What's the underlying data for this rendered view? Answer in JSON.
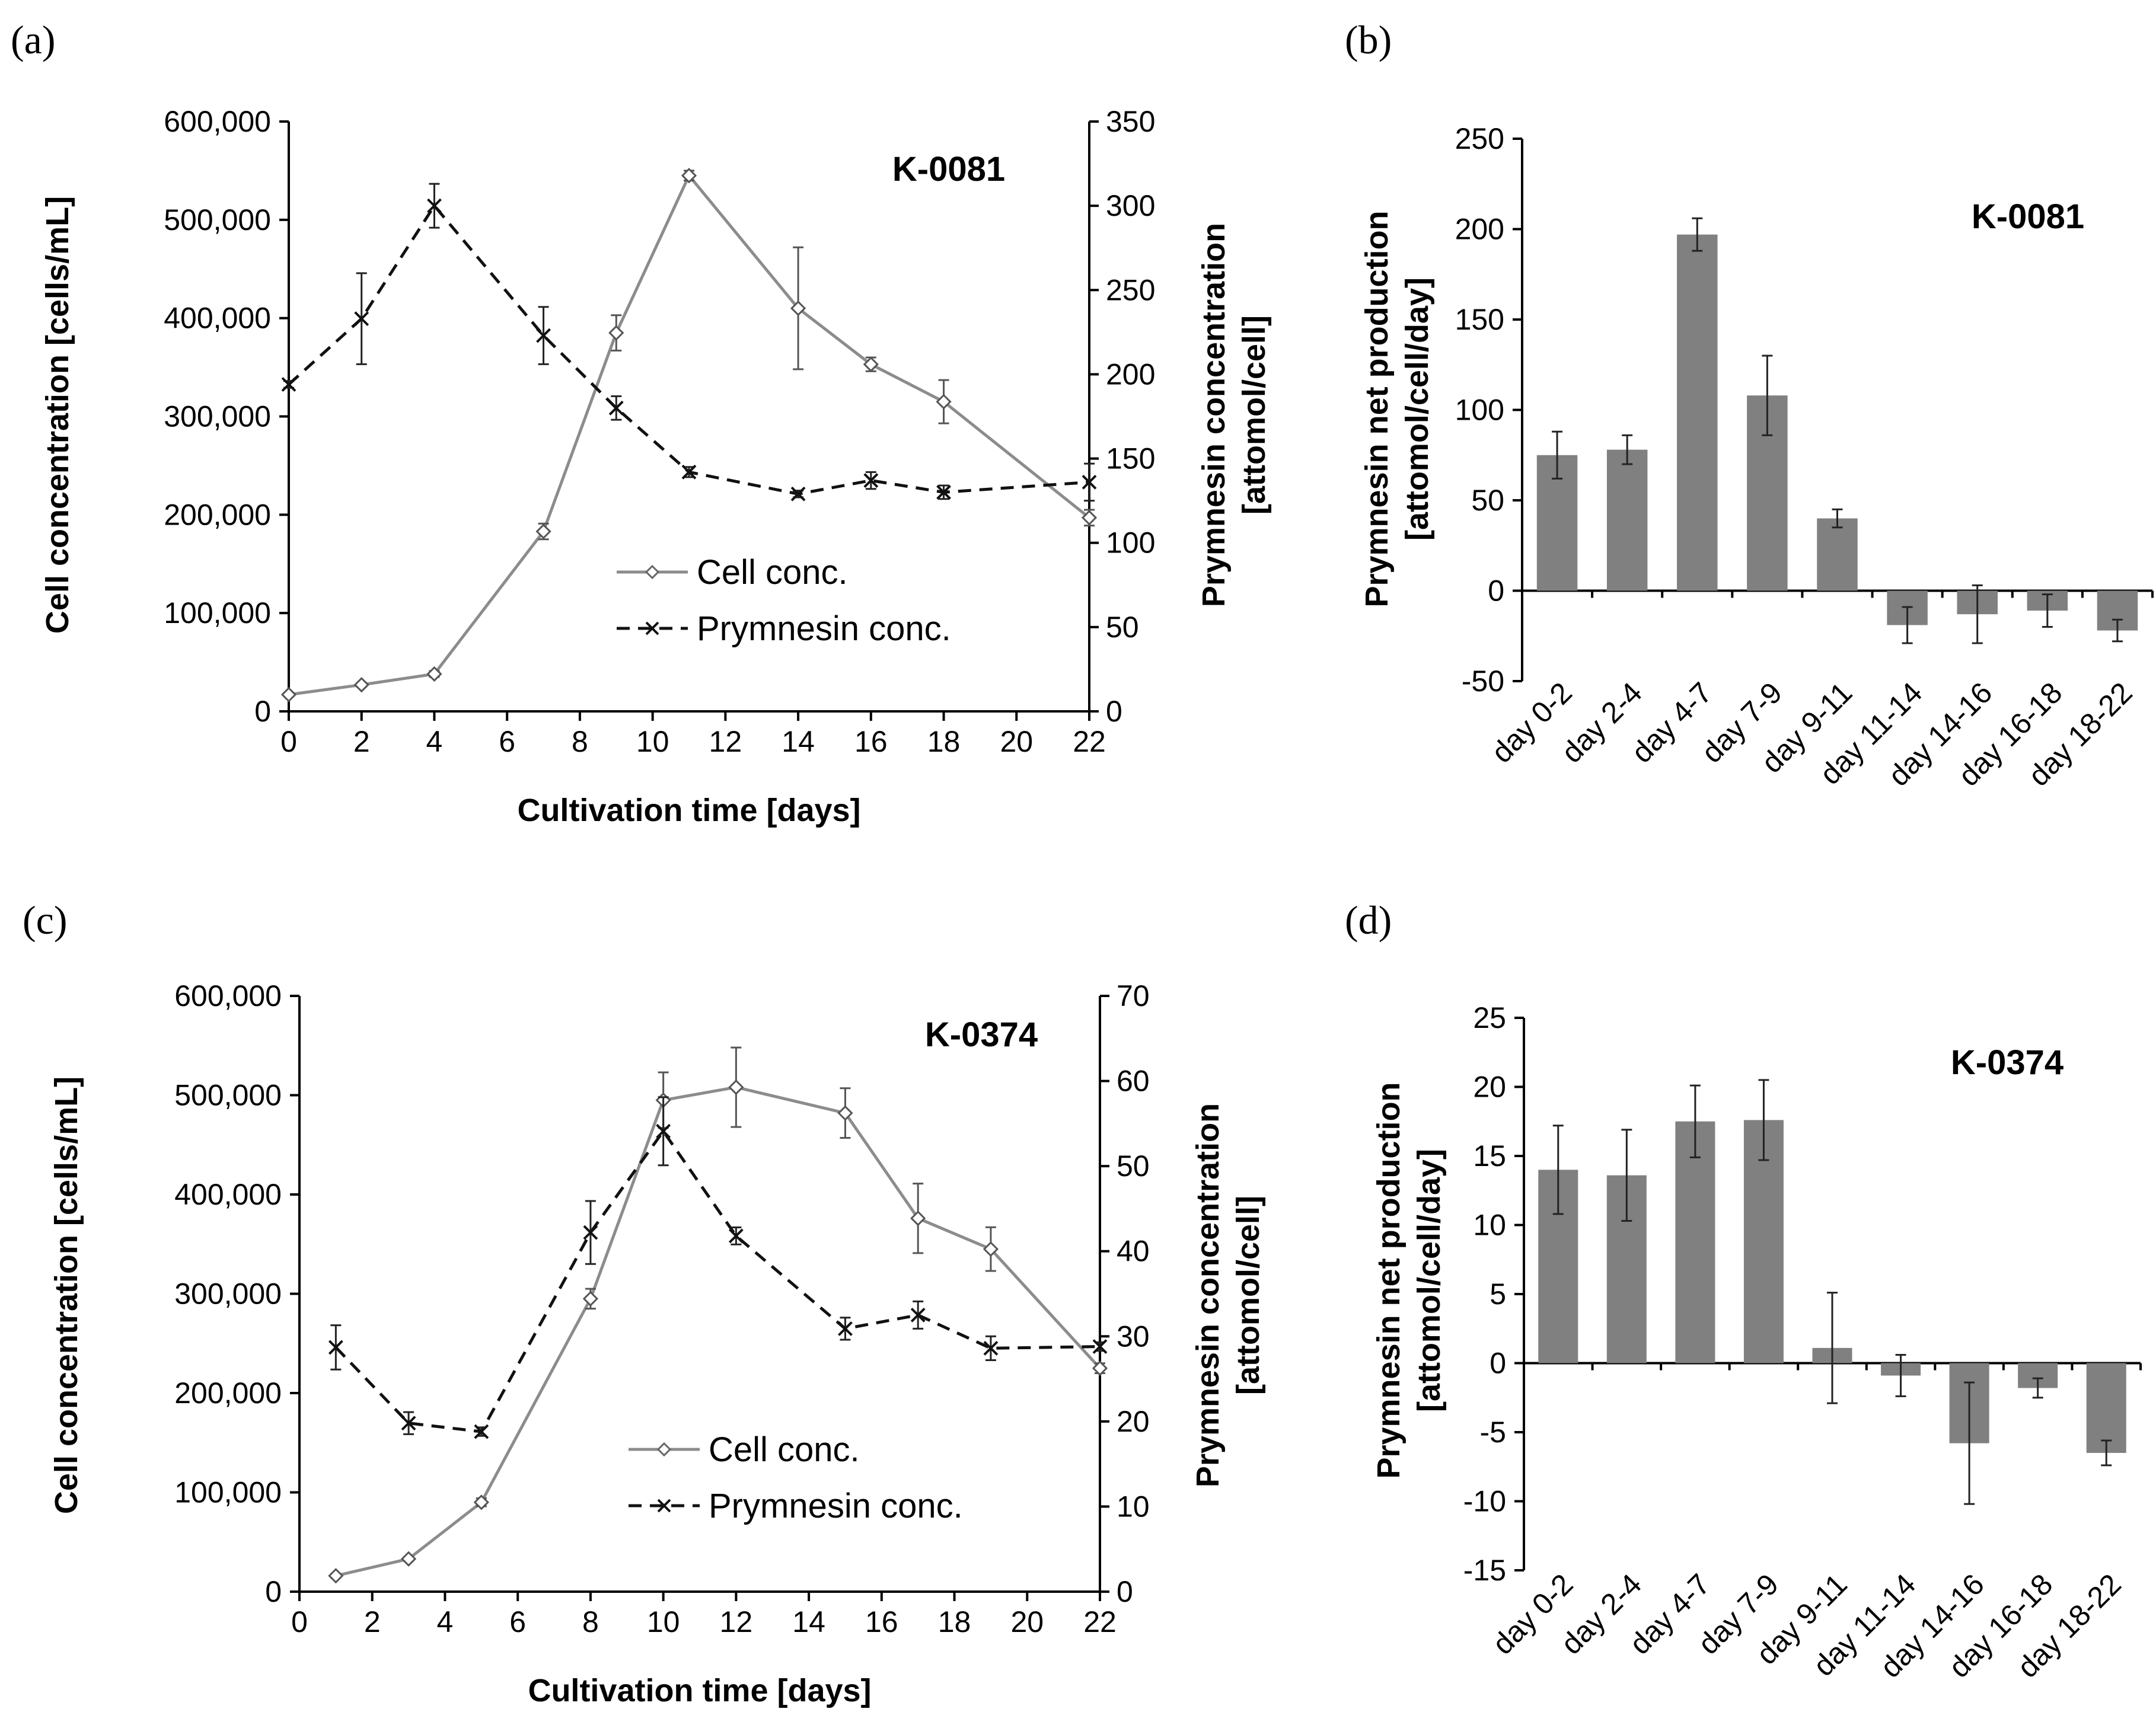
{
  "figure": {
    "background": "#ffffff",
    "cell_color": "#8c8c8c",
    "prymnesin_color": "#111111",
    "bar_color": "#808080"
  },
  "chart_data": [
    {
      "panel": "(a)",
      "type": "line",
      "strain": "K-0081",
      "xlabel": "Cultivation time [days]",
      "ylabel_left": "Cell concentration [cells/mL]",
      "ylabel_right_line1": "Prymnesin concentration",
      "ylabel_right_line2": "[attomol/cell]",
      "xlim": [
        0,
        22
      ],
      "xticks": [
        0,
        2,
        4,
        6,
        8,
        10,
        12,
        14,
        16,
        18,
        20,
        22
      ],
      "ylim_left": [
        0,
        600000
      ],
      "yticks_left": [
        0,
        100000,
        200000,
        300000,
        400000,
        500000,
        600000
      ],
      "ytick_labels_left": [
        "0",
        "100,000",
        "200,000",
        "300,000",
        "400,000",
        "500,000",
        "600,000"
      ],
      "ylim_right": [
        0,
        350
      ],
      "yticks_right": [
        0,
        50,
        100,
        150,
        200,
        250,
        300,
        350
      ],
      "ytick_labels_right": [
        "0",
        "50",
        "100",
        "150",
        "200",
        "250",
        "300",
        "350"
      ],
      "legend": [
        "Cell conc.",
        "Prymnesin conc."
      ],
      "series": [
        {
          "name": "Cell conc.",
          "axis": "left",
          "marker": "diamond",
          "x": [
            0,
            2,
            4,
            7,
            9,
            11,
            14,
            16,
            18,
            22
          ],
          "y": [
            17000,
            27000,
            38000,
            183000,
            385000,
            545000,
            410000,
            353000,
            315000,
            197000
          ],
          "err": [
            2000,
            2000,
            3000,
            8000,
            18000,
            5000,
            62000,
            7000,
            22000,
            8000
          ]
        },
        {
          "name": "Prymnesin conc.",
          "axis": "right",
          "marker": "x",
          "x": [
            0,
            2,
            4,
            7,
            9,
            11,
            14,
            16,
            18,
            22
          ],
          "y": [
            194,
            233,
            300,
            223,
            180,
            142,
            129,
            137,
            130,
            136
          ],
          "err": [
            2,
            27,
            13,
            17,
            7,
            3,
            2,
            5,
            4,
            11
          ]
        }
      ]
    },
    {
      "panel": "(b)",
      "type": "bar",
      "strain": "K-0081",
      "ylabel_line1": "Prymnesin net production",
      "ylabel_line2": "[attomol/cell/day]",
      "ylim": [
        -50,
        250
      ],
      "yticks": [
        -50,
        0,
        50,
        100,
        150,
        200,
        250
      ],
      "ytick_labels": [
        "-50",
        "0",
        "50",
        "100",
        "150",
        "200",
        "250"
      ],
      "categories": [
        "day 0-2",
        "day 2-4",
        "day 4-7",
        "day 7-9",
        "day 9-11",
        "day 11-14",
        "day 14-16",
        "day 16-18",
        "day 18-22"
      ],
      "values": [
        75,
        78,
        197,
        108,
        40,
        -19,
        -13,
        -11,
        -22
      ],
      "err": [
        13,
        8,
        9,
        22,
        5,
        10,
        16,
        9,
        6
      ]
    },
    {
      "panel": "(c)",
      "type": "line",
      "strain": "K-0374",
      "xlabel": "Cultivation time [days]",
      "ylabel_left": "Cell concentration [cells/mL]",
      "ylabel_right_line1": "Prymnesin concentration",
      "ylabel_right_line2": "[attomol/cell]",
      "xlim": [
        0,
        22
      ],
      "xticks": [
        0,
        2,
        4,
        6,
        8,
        10,
        12,
        14,
        16,
        18,
        20,
        22
      ],
      "ylim_left": [
        0,
        600000
      ],
      "yticks_left": [
        0,
        100000,
        200000,
        300000,
        400000,
        500000,
        600000
      ],
      "ytick_labels_left": [
        "0",
        "100,000",
        "200,000",
        "300,000",
        "400,000",
        "500,000",
        "600,000"
      ],
      "ylim_right": [
        0,
        70
      ],
      "yticks_right": [
        0,
        10,
        20,
        30,
        40,
        50,
        60,
        70
      ],
      "ytick_labels_right": [
        "0",
        "10",
        "20",
        "30",
        "40",
        "50",
        "60",
        "70"
      ],
      "legend": [
        "Cell conc.",
        "Prymnesin conc."
      ],
      "series": [
        {
          "name": "Cell conc.",
          "axis": "left",
          "marker": "diamond",
          "x": [
            1,
            3,
            5,
            8,
            10,
            12,
            15,
            17,
            19,
            22
          ],
          "y": [
            16000,
            33000,
            90000,
            295000,
            495000,
            508000,
            482000,
            376000,
            345000,
            225000
          ],
          "err": [
            2000,
            2000,
            4000,
            10000,
            28000,
            40000,
            25000,
            35000,
            22000,
            5000
          ]
        },
        {
          "name": "Prymnesin conc.",
          "axis": "right",
          "marker": "x",
          "x": [
            1,
            3,
            5,
            8,
            10,
            12,
            15,
            17,
            19,
            22
          ],
          "y": [
            28.7,
            19.8,
            18.8,
            42.2,
            54.1,
            41.8,
            30.9,
            32.5,
            28.6,
            28.8
          ],
          "err": [
            2.6,
            1.3,
            0.5,
            3.7,
            4.0,
            1.0,
            1.3,
            1.6,
            1.4,
            0.5
          ]
        }
      ]
    },
    {
      "panel": "(d)",
      "type": "bar",
      "strain": "K-0374",
      "ylabel_line1": "Prymnesin net production",
      "ylabel_line2": "[attomol/cell/day]",
      "ylim": [
        -15,
        25
      ],
      "yticks": [
        -15,
        -10,
        -5,
        0,
        5,
        10,
        15,
        20,
        25
      ],
      "ytick_labels": [
        "-15",
        "-10",
        "-5",
        "0",
        "5",
        "10",
        "15",
        "20",
        "25"
      ],
      "categories": [
        "day 0-2",
        "day 2-4",
        "day 4-7",
        "day 7-9",
        "day 9-11",
        "day 11-14",
        "day 14-16",
        "day 16-18",
        "day 18-22"
      ],
      "values": [
        14.0,
        13.6,
        17.5,
        17.6,
        1.1,
        -0.9,
        -5.8,
        -1.8,
        -6.5
      ],
      "err": [
        3.2,
        3.3,
        2.6,
        2.9,
        4.0,
        1.5,
        4.4,
        0.7,
        0.9
      ]
    }
  ]
}
